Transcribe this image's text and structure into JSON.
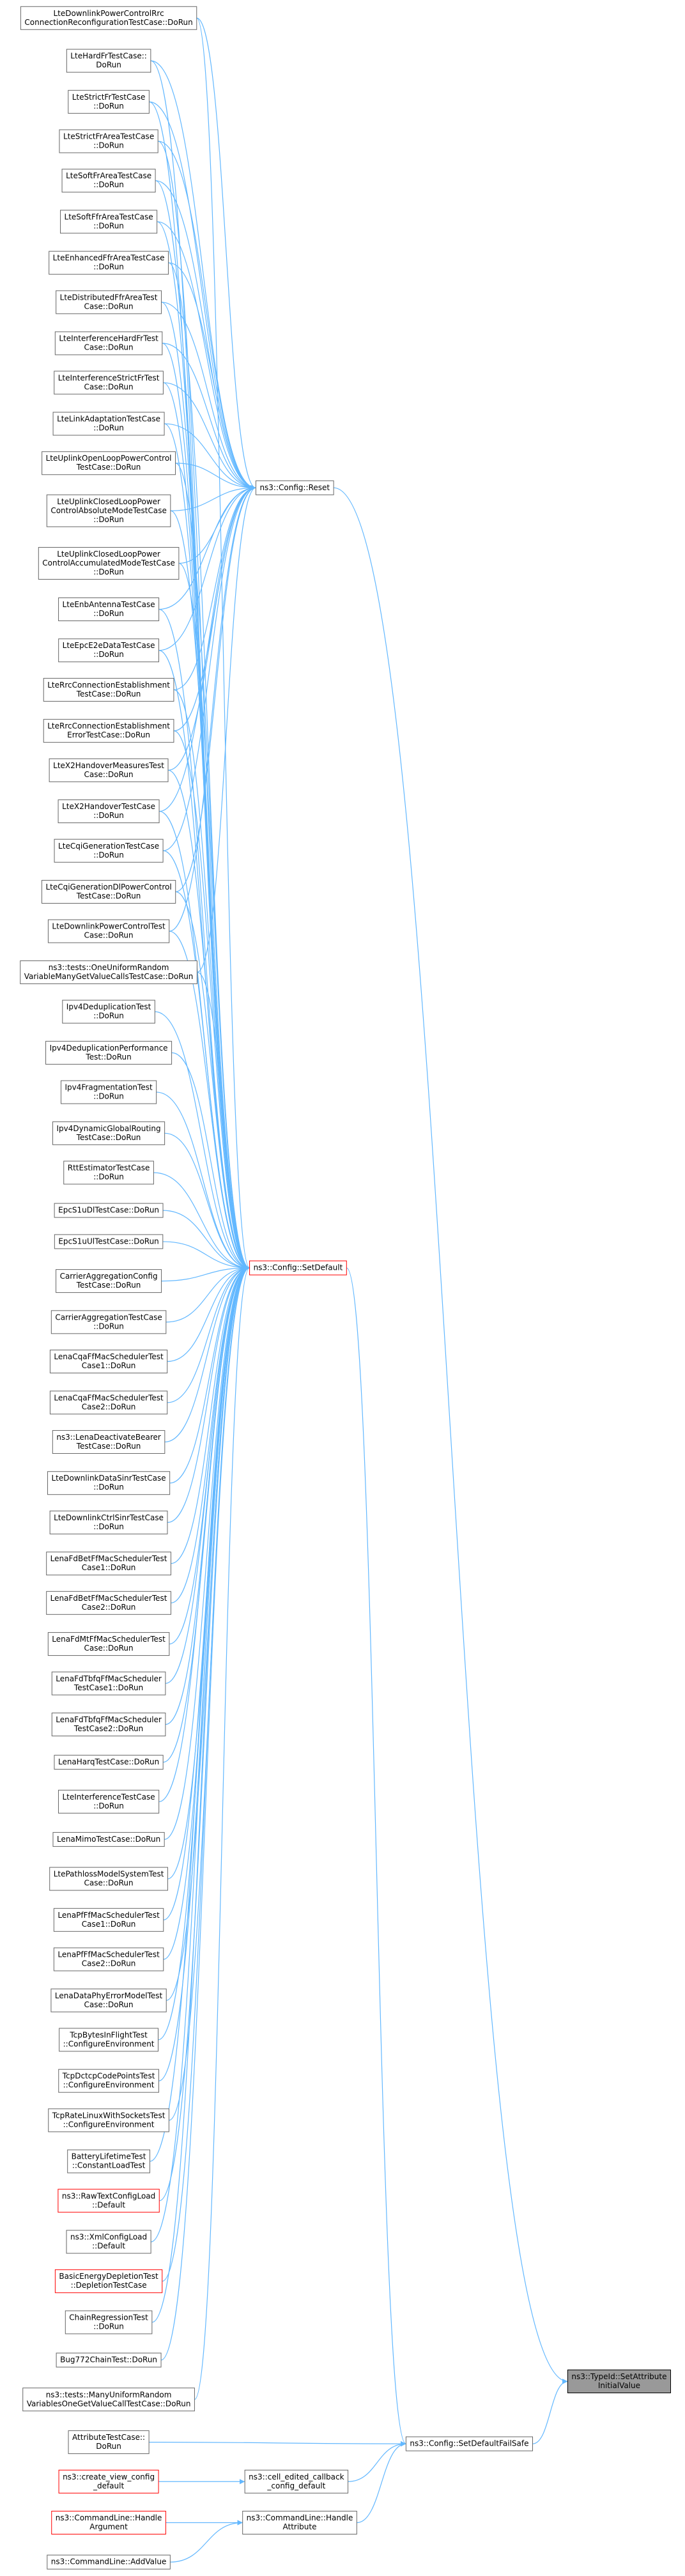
{
  "nodes": [
    {
      "lines": [
        "LteDownlinkPowerControlRrc",
        "ConnectionReconfigurationTestCase::DoRun"
      ]
    },
    {
      "lines": [
        "LteHardFrTestCase::",
        "DoRun"
      ]
    },
    {
      "lines": [
        "LteStrictFrTestCase",
        "::DoRun"
      ]
    },
    {
      "lines": [
        "LteStrictFrAreaTestCase",
        "::DoRun"
      ]
    },
    {
      "lines": [
        "LteSoftFrAreaTestCase",
        "::DoRun"
      ]
    },
    {
      "lines": [
        "LteSoftFfrAreaTestCase",
        "::DoRun"
      ]
    },
    {
      "lines": [
        "LteEnhancedFfrAreaTestCase",
        "::DoRun"
      ]
    },
    {
      "lines": [
        "LteDistributedFfrAreaTest",
        "Case::DoRun"
      ]
    },
    {
      "lines": [
        "LteInterferenceHardFrTest",
        "Case::DoRun"
      ]
    },
    {
      "lines": [
        "LteInterferenceStrictFrTest",
        "Case::DoRun"
      ]
    },
    {
      "lines": [
        "LteLinkAdaptationTestCase",
        "::DoRun"
      ]
    },
    {
      "lines": [
        "LteUplinkOpenLoopPowerControl",
        "TestCase::DoRun"
      ]
    },
    {
      "lines": [
        "LteUplinkClosedLoopPower",
        "ControlAbsoluteModeTestCase",
        "::DoRun"
      ]
    },
    {
      "lines": [
        "LteUplinkClosedLoopPower",
        "ControlAccumulatedModeTestCase",
        "::DoRun"
      ]
    },
    {
      "lines": [
        "LteEnbAntennaTestCase",
        "::DoRun"
      ]
    },
    {
      "lines": [
        "LteEpcE2eDataTestCase",
        "::DoRun"
      ]
    },
    {
      "lines": [
        "LteRrcConnectionEstablishment",
        "TestCase::DoRun"
      ]
    },
    {
      "lines": [
        "LteRrcConnectionEstablishment",
        "ErrorTestCase::DoRun"
      ]
    },
    {
      "lines": [
        "LteX2HandoverMeasuresTest",
        "Case::DoRun"
      ]
    },
    {
      "lines": [
        "LteX2HandoverTestCase",
        "::DoRun"
      ]
    },
    {
      "lines": [
        "LteCqiGenerationTestCase",
        "::DoRun"
      ]
    },
    {
      "lines": [
        "LteCqiGenerationDlPowerControl",
        "TestCase::DoRun"
      ]
    },
    {
      "lines": [
        "LteDownlinkPowerControlTest",
        "Case::DoRun"
      ]
    },
    {
      "lines": [
        "ns3::tests::OneUniformRandom",
        "VariableManyGetValueCallsTestCase::DoRun"
      ]
    },
    {
      "lines": [
        "Ipv4DeduplicationTest",
        "::DoRun"
      ]
    },
    {
      "lines": [
        "Ipv4DeduplicationPerformance",
        "Test::DoRun"
      ]
    },
    {
      "lines": [
        "Ipv4FragmentationTest",
        "::DoRun"
      ]
    },
    {
      "lines": [
        "Ipv4DynamicGlobalRouting",
        "TestCase::DoRun"
      ]
    },
    {
      "lines": [
        "RttEstimatorTestCase",
        "::DoRun"
      ]
    },
    {
      "lines": [
        "EpcS1uDlTestCase::DoRun"
      ]
    },
    {
      "lines": [
        "EpcS1uUlTestCase::DoRun"
      ]
    },
    {
      "lines": [
        "CarrierAggregationConfig",
        "TestCase::DoRun"
      ]
    },
    {
      "lines": [
        "CarrierAggregationTestCase",
        "::DoRun"
      ]
    },
    {
      "lines": [
        "LenaCqaFfMacSchedulerTest",
        "Case1::DoRun"
      ]
    },
    {
      "lines": [
        "LenaCqaFfMacSchedulerTest",
        "Case2::DoRun"
      ]
    },
    {
      "lines": [
        "ns3::LenaDeactivateBearer",
        "TestCase::DoRun"
      ]
    },
    {
      "lines": [
        "LteDownlinkDataSinrTestCase",
        "::DoRun"
      ]
    },
    {
      "lines": [
        "LteDownlinkCtrlSinrTestCase",
        "::DoRun"
      ]
    },
    {
      "lines": [
        "LenaFdBetFfMacSchedulerTest",
        "Case1::DoRun"
      ]
    },
    {
      "lines": [
        "LenaFdBetFfMacSchedulerTest",
        "Case2::DoRun"
      ]
    },
    {
      "lines": [
        "LenaFdMtFfMacSchedulerTest",
        "Case::DoRun"
      ]
    },
    {
      "lines": [
        "LenaFdTbfqFfMacScheduler",
        "TestCase1::DoRun"
      ]
    },
    {
      "lines": [
        "LenaFdTbfqFfMacScheduler",
        "TestCase2::DoRun"
      ]
    },
    {
      "lines": [
        "LenaHarqTestCase::DoRun"
      ]
    },
    {
      "lines": [
        "LteInterferenceTestCase",
        "::DoRun"
      ]
    },
    {
      "lines": [
        "LenaMimoTestCase::DoRun"
      ]
    },
    {
      "lines": [
        "LtePathlossModelSystemTest",
        "Case::DoRun"
      ]
    },
    {
      "lines": [
        "LenaPfFfMacSchedulerTest",
        "Case1::DoRun"
      ]
    },
    {
      "lines": [
        "LenaPfFfMacSchedulerTest",
        "Case2::DoRun"
      ]
    },
    {
      "lines": [
        "LenaDataPhyErrorModelTest",
        "Case::DoRun"
      ]
    },
    {
      "lines": [
        "TcpBytesInFlightTest",
        "::ConfigureEnvironment"
      ]
    },
    {
      "lines": [
        "TcpDctcpCodePointsTest",
        "::ConfigureEnvironment"
      ]
    },
    {
      "lines": [
        "TcpRateLinuxWithSocketsTest",
        "::ConfigureEnvironment"
      ]
    },
    {
      "lines": [
        "BatteryLifetimeTest",
        "::ConstantLoadTest"
      ]
    },
    {
      "lines": [
        "ns3::RawTextConfigLoad",
        "::Default"
      ]
    },
    {
      "lines": [
        "ns3::XmlConfigLoad",
        "::Default"
      ]
    },
    {
      "lines": [
        "BasicEnergyDepletionTest",
        "::DepletionTestCase"
      ]
    },
    {
      "lines": [
        "ChainRegressionTest",
        "::DoRun"
      ]
    },
    {
      "lines": [
        "Bug772ChainTest::DoRun"
      ]
    },
    {
      "lines": [
        "ns3::tests::ManyUniformRandom",
        "VariablesOneGetValueCallTestCase::DoRun"
      ]
    },
    {
      "lines": [
        "AttributeTestCase::",
        "DoRun"
      ]
    },
    {
      "lines": [
        "ns3::create_view_config",
        "_default"
      ]
    },
    {
      "lines": [
        "ns3::CommandLine::Handle",
        "Argument"
      ]
    },
    {
      "lines": [
        "ns3::CommandLine::AddValue"
      ]
    },
    {
      "lines": [
        "ns3::Config::Reset"
      ]
    },
    {
      "lines": [
        "ns3::Config::SetDefault"
      ]
    },
    {
      "lines": [
        "ns3::Config::SetDefaultFailSafe"
      ]
    },
    {
      "lines": [
        "ns3::cell_edited_callback",
        "_config_default"
      ]
    },
    {
      "lines": [
        "ns3::CommandLine::Handle",
        "Attribute"
      ]
    },
    {
      "lines": [
        "ns3::TypeId::SetAttribute",
        "InitialValue"
      ]
    }
  ]
}
